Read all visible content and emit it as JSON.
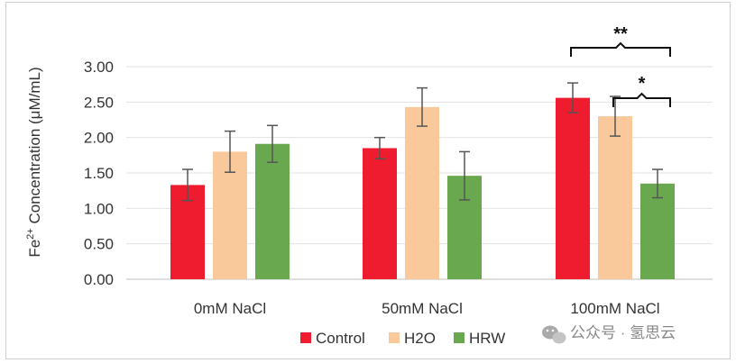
{
  "chart_data": {
    "type": "bar",
    "title": "",
    "xlabel": "",
    "ylabel_prefix": "Fe",
    "ylabel_sup": "2+",
    "ylabel_suffix": " Concentration (μM/mL)",
    "ylim": [
      0,
      3
    ],
    "ytick_labels": [
      "0.00",
      "0.50",
      "1.00",
      "1.50",
      "2.00",
      "2.50",
      "3.00"
    ],
    "categories": [
      "0mM NaCl",
      "50mM NaCl",
      "100mM NaCl"
    ],
    "series": [
      {
        "name": "Control",
        "color": "#ee1c2e",
        "values": [
          1.33,
          1.85,
          2.56
        ],
        "errors": [
          0.22,
          0.15,
          0.21
        ]
      },
      {
        "name": "H2O",
        "color": "#f9c89b",
        "values": [
          1.8,
          2.43,
          2.3
        ],
        "errors": [
          0.29,
          0.27,
          0.28
        ]
      },
      {
        "name": "HRW",
        "color": "#6aa84f",
        "values": [
          1.91,
          1.46,
          1.35
        ],
        "errors": [
          0.26,
          0.34,
          0.2
        ]
      }
    ],
    "annotations": [
      {
        "label": "**",
        "from_series": 0,
        "to_series": 2,
        "category": 2
      },
      {
        "label": "*",
        "from_series": 1,
        "to_series": 2,
        "category": 2
      }
    ],
    "legend_position": "bottom"
  },
  "watermark": {
    "text": "公众号 · 氢思云",
    "icon": "wechat-icon"
  }
}
